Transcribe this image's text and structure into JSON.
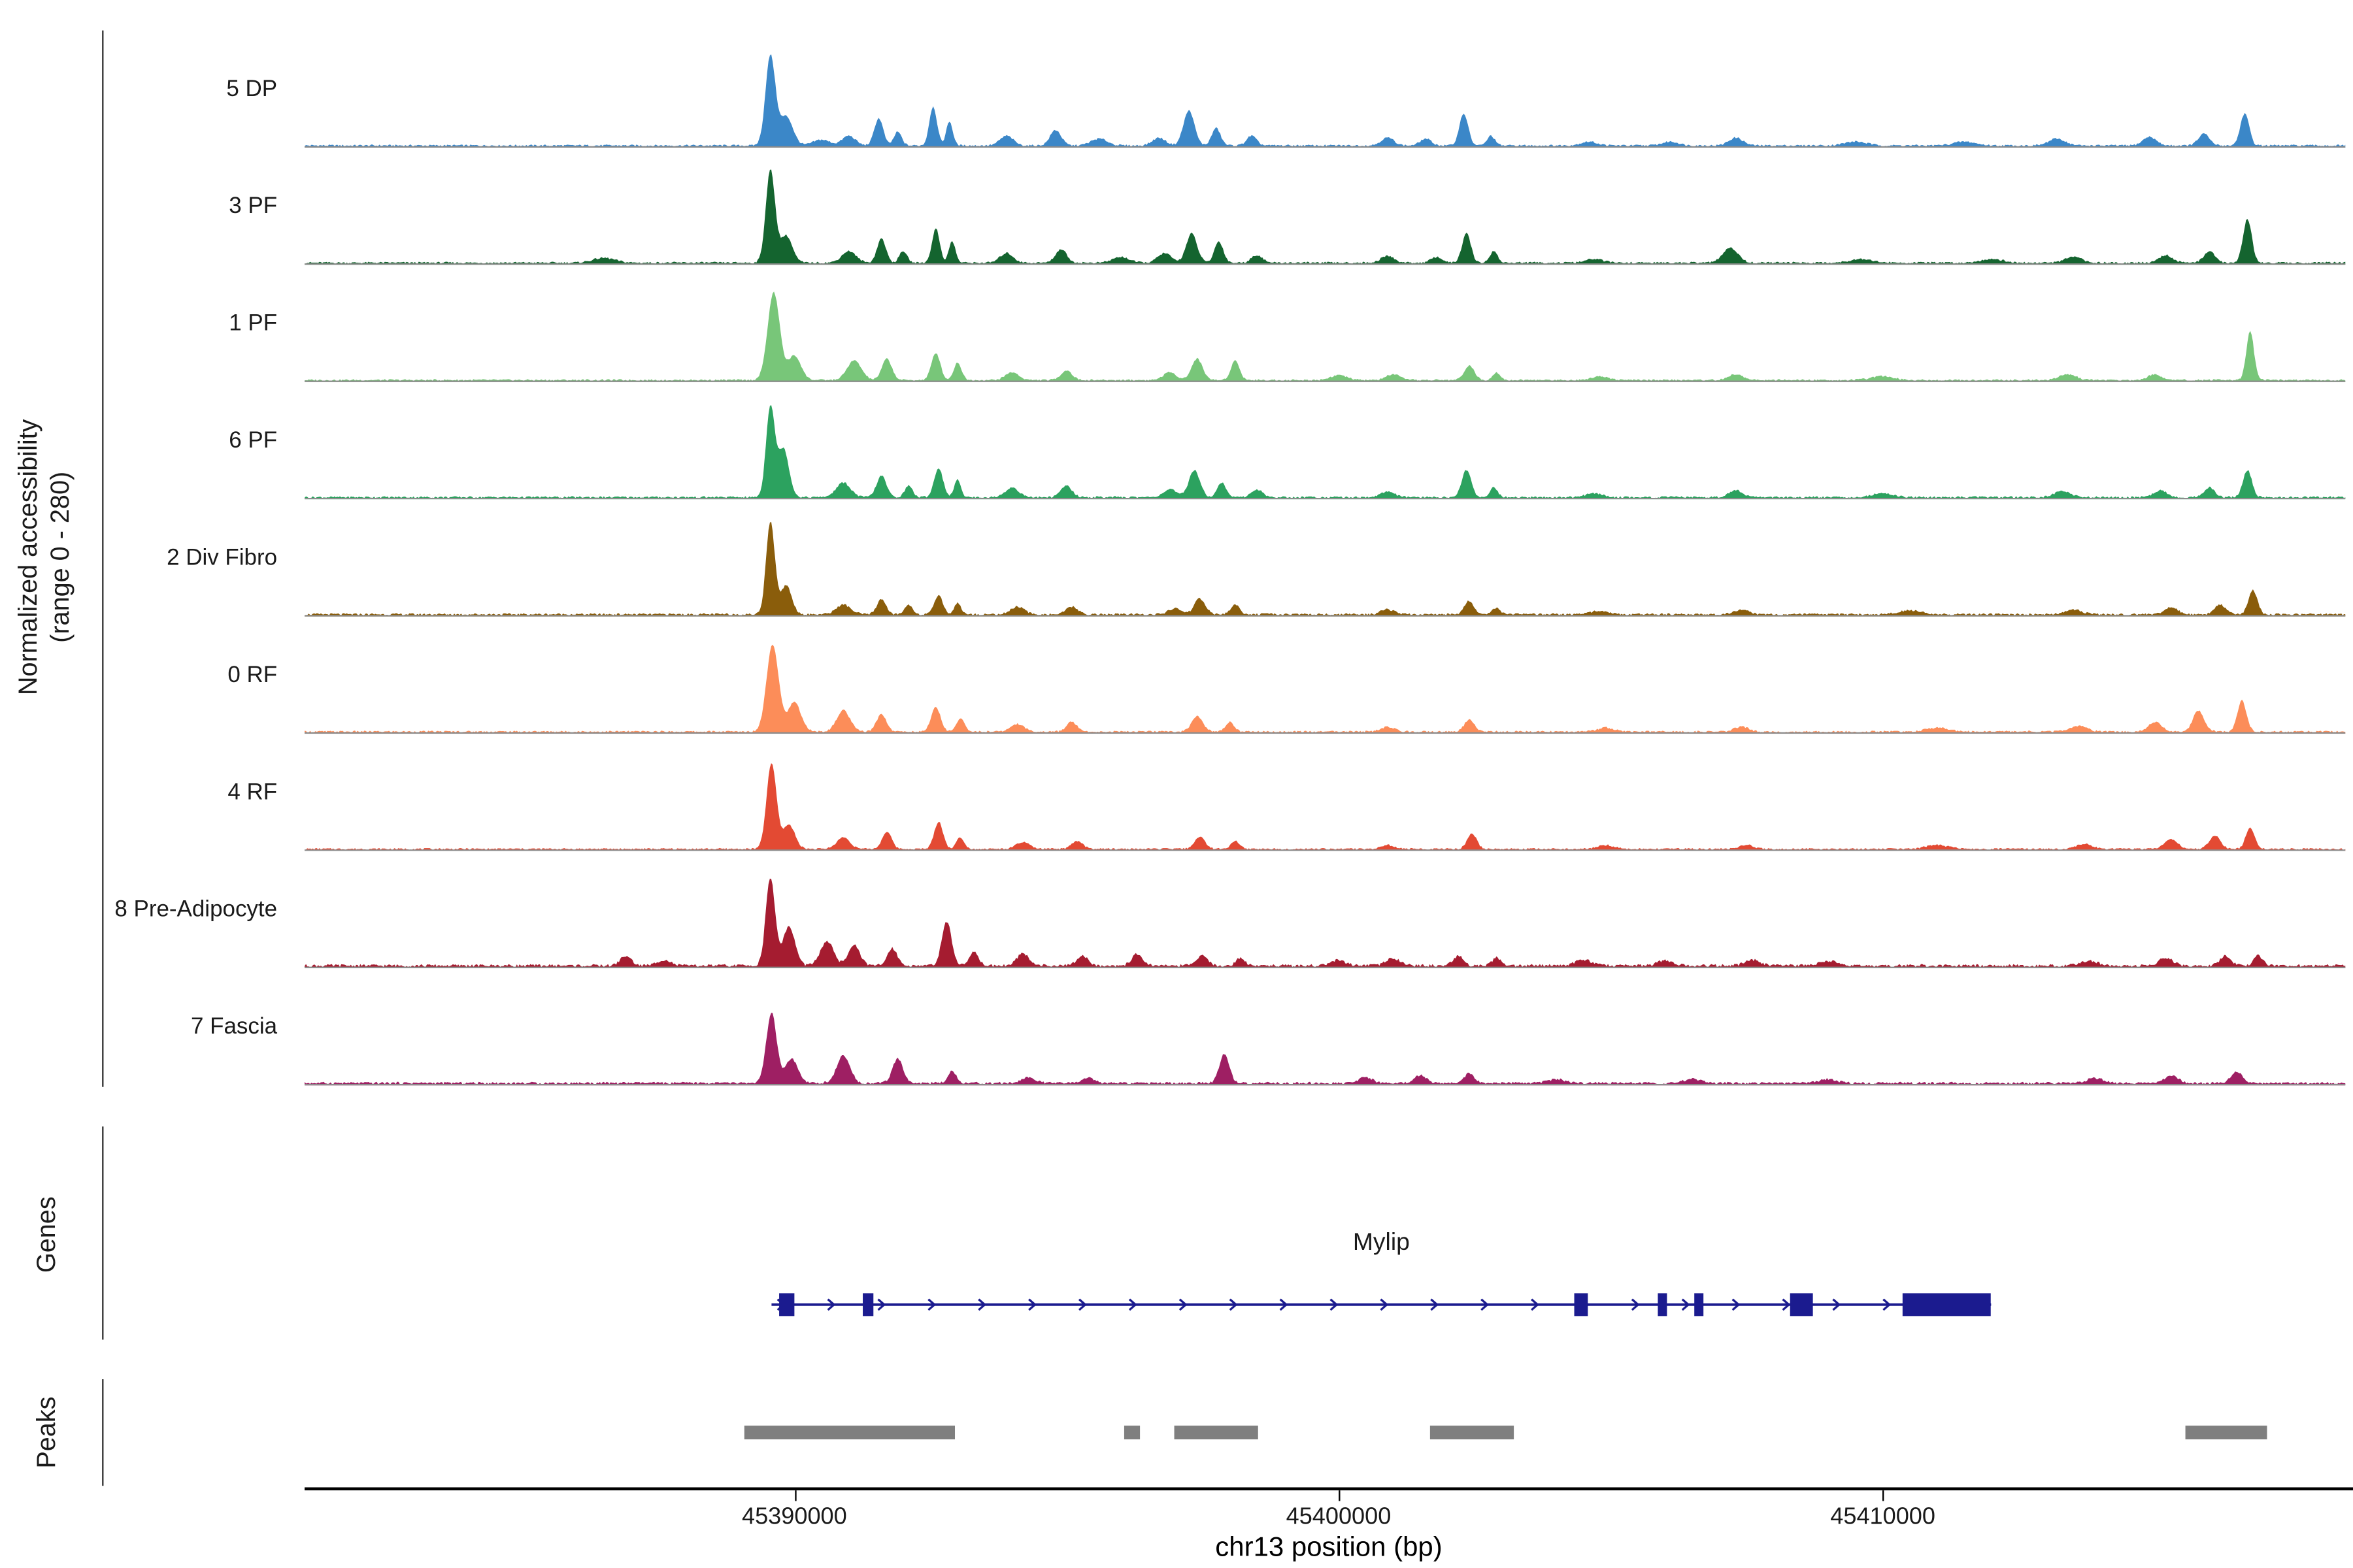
{
  "figure": {
    "y_axis_label_line1": "Normalized accessibility",
    "y_axis_label_line2": "(range 0 - 280)",
    "genes_section_label": "Genes",
    "peaks_section_label": "Peaks",
    "x_axis_title": "chr13 position (bp)",
    "gene_label": "Mylip"
  },
  "chart_data": {
    "type": "area",
    "title": "",
    "xlabel": "chr13 position (bp)",
    "ylabel": "Normalized accessibility (range 0 - 280)",
    "y_range": [
      0,
      280
    ],
    "x_domain_bp": [
      45381000,
      45418500
    ],
    "x_ticks": [
      45390000,
      45400000,
      45410000
    ],
    "x_tick_labels": [
      "45390000",
      "45400000",
      "45410000"
    ],
    "baseline_color": "#8c8c8c",
    "axis_color": "#000000",
    "gene_color": "#1b1b8f",
    "peak_bar_color": "#7f7f7f",
    "tracks": [
      {
        "label": "5 DP",
        "color": "#3b87c8",
        "noise": 0.02,
        "peaks": [
          [
            45389560,
            0.92,
            90
          ],
          [
            45389850,
            0.3,
            120
          ],
          [
            45390500,
            0.06,
            150
          ],
          [
            45391000,
            0.1,
            120
          ],
          [
            45391550,
            0.28,
            80
          ],
          [
            45391900,
            0.14,
            70
          ],
          [
            45392550,
            0.4,
            70
          ],
          [
            45392850,
            0.25,
            60
          ],
          [
            45393900,
            0.1,
            120
          ],
          [
            45394800,
            0.16,
            100
          ],
          [
            45395600,
            0.07,
            150
          ],
          [
            45396700,
            0.08,
            120
          ],
          [
            45397250,
            0.36,
            100
          ],
          [
            45397750,
            0.18,
            80
          ],
          [
            45398400,
            0.1,
            90
          ],
          [
            45400900,
            0.08,
            120
          ],
          [
            45401600,
            0.07,
            100
          ],
          [
            45402300,
            0.33,
            80
          ],
          [
            45402800,
            0.1,
            70
          ],
          [
            45404600,
            0.04,
            150
          ],
          [
            45406100,
            0.04,
            150
          ],
          [
            45407300,
            0.08,
            130
          ],
          [
            45409500,
            0.04,
            200
          ],
          [
            45411500,
            0.04,
            200
          ],
          [
            45413200,
            0.07,
            150
          ],
          [
            45414900,
            0.09,
            120
          ],
          [
            45415900,
            0.12,
            100
          ],
          [
            45416650,
            0.33,
            80
          ]
        ]
      },
      {
        "label": "3 PF",
        "color": "#14642f",
        "noise": 0.02,
        "peaks": [
          [
            45386500,
            0.05,
            200
          ],
          [
            45389560,
            0.95,
            85
          ],
          [
            45389850,
            0.28,
            110
          ],
          [
            45391000,
            0.12,
            130
          ],
          [
            45391600,
            0.25,
            80
          ],
          [
            45392000,
            0.12,
            70
          ],
          [
            45392600,
            0.35,
            70
          ],
          [
            45392900,
            0.22,
            60
          ],
          [
            45393900,
            0.1,
            120
          ],
          [
            45394900,
            0.14,
            100
          ],
          [
            45396000,
            0.06,
            150
          ],
          [
            45396800,
            0.1,
            120
          ],
          [
            45397300,
            0.3,
            100
          ],
          [
            45397800,
            0.22,
            80
          ],
          [
            45398500,
            0.08,
            100
          ],
          [
            45400900,
            0.07,
            120
          ],
          [
            45401800,
            0.06,
            100
          ],
          [
            45402350,
            0.3,
            80
          ],
          [
            45402850,
            0.12,
            70
          ],
          [
            45404700,
            0.04,
            150
          ],
          [
            45407200,
            0.15,
            140
          ],
          [
            45409600,
            0.04,
            200
          ],
          [
            45412000,
            0.04,
            200
          ],
          [
            45413500,
            0.06,
            150
          ],
          [
            45415200,
            0.08,
            120
          ],
          [
            45416000,
            0.12,
            100
          ],
          [
            45416700,
            0.45,
            80
          ]
        ]
      },
      {
        "label": "1 PF",
        "color": "#78c679",
        "noise": 0.018,
        "peaks": [
          [
            45389620,
            0.9,
            110
          ],
          [
            45390000,
            0.25,
            120
          ],
          [
            45391100,
            0.2,
            130
          ],
          [
            45391700,
            0.22,
            90
          ],
          [
            45392600,
            0.28,
            80
          ],
          [
            45393000,
            0.18,
            70
          ],
          [
            45394000,
            0.08,
            120
          ],
          [
            45395000,
            0.1,
            100
          ],
          [
            45396900,
            0.08,
            120
          ],
          [
            45397400,
            0.22,
            100
          ],
          [
            45398100,
            0.2,
            80
          ],
          [
            45400000,
            0.05,
            150
          ],
          [
            45401000,
            0.06,
            120
          ],
          [
            45402400,
            0.15,
            90
          ],
          [
            45402900,
            0.08,
            70
          ],
          [
            45404800,
            0.04,
            150
          ],
          [
            45407300,
            0.06,
            130
          ],
          [
            45410000,
            0.04,
            200
          ],
          [
            45413400,
            0.06,
            150
          ],
          [
            45415000,
            0.06,
            120
          ],
          [
            45416750,
            0.5,
            70
          ]
        ]
      },
      {
        "label": "6 PF",
        "color": "#2ca25f",
        "noise": 0.02,
        "peaks": [
          [
            45389560,
            0.93,
            80
          ],
          [
            45389800,
            0.5,
            100
          ],
          [
            45390900,
            0.15,
            130
          ],
          [
            45391600,
            0.22,
            90
          ],
          [
            45392100,
            0.12,
            70
          ],
          [
            45392650,
            0.3,
            80
          ],
          [
            45393000,
            0.18,
            60
          ],
          [
            45394000,
            0.1,
            120
          ],
          [
            45395000,
            0.12,
            100
          ],
          [
            45396900,
            0.08,
            120
          ],
          [
            45397350,
            0.28,
            100
          ],
          [
            45397850,
            0.15,
            80
          ],
          [
            45398500,
            0.08,
            100
          ],
          [
            45400900,
            0.06,
            120
          ],
          [
            45402350,
            0.28,
            85
          ],
          [
            45402850,
            0.1,
            70
          ],
          [
            45404700,
            0.04,
            150
          ],
          [
            45407300,
            0.07,
            130
          ],
          [
            45410000,
            0.04,
            200
          ],
          [
            45413300,
            0.06,
            150
          ],
          [
            45415100,
            0.07,
            120
          ],
          [
            45416000,
            0.1,
            100
          ],
          [
            45416700,
            0.28,
            80
          ]
        ]
      },
      {
        "label": "2 Div Fibro",
        "color": "#8a5d0b",
        "noise": 0.022,
        "peaks": [
          [
            45389560,
            0.95,
            80
          ],
          [
            45389850,
            0.3,
            100
          ],
          [
            45390900,
            0.1,
            130
          ],
          [
            45391600,
            0.16,
            80
          ],
          [
            45392100,
            0.1,
            70
          ],
          [
            45392650,
            0.2,
            75
          ],
          [
            45393000,
            0.12,
            60
          ],
          [
            45394100,
            0.08,
            120
          ],
          [
            45395100,
            0.08,
            100
          ],
          [
            45397000,
            0.06,
            120
          ],
          [
            45397450,
            0.16,
            100
          ],
          [
            45398100,
            0.1,
            80
          ],
          [
            45400900,
            0.05,
            120
          ],
          [
            45402400,
            0.14,
            85
          ],
          [
            45402900,
            0.07,
            70
          ],
          [
            45404800,
            0.04,
            150
          ],
          [
            45407400,
            0.05,
            130
          ],
          [
            45410500,
            0.04,
            200
          ],
          [
            45413500,
            0.05,
            150
          ],
          [
            45415300,
            0.07,
            120
          ],
          [
            45416200,
            0.1,
            100
          ],
          [
            45416800,
            0.25,
            80
          ]
        ]
      },
      {
        "label": "0 RF",
        "color": "#fc8d59",
        "noise": 0.02,
        "peaks": [
          [
            45389600,
            0.9,
            110
          ],
          [
            45390000,
            0.3,
            120
          ],
          [
            45390900,
            0.22,
            120
          ],
          [
            45391600,
            0.18,
            90
          ],
          [
            45392600,
            0.25,
            85
          ],
          [
            45393050,
            0.14,
            70
          ],
          [
            45394100,
            0.08,
            120
          ],
          [
            45395100,
            0.1,
            100
          ],
          [
            45397400,
            0.16,
            100
          ],
          [
            45398000,
            0.1,
            80
          ],
          [
            45400900,
            0.05,
            120
          ],
          [
            45402400,
            0.12,
            90
          ],
          [
            45404900,
            0.04,
            150
          ],
          [
            45407400,
            0.05,
            130
          ],
          [
            45411000,
            0.04,
            200
          ],
          [
            45413600,
            0.06,
            150
          ],
          [
            45415000,
            0.1,
            120
          ],
          [
            45415800,
            0.22,
            100
          ],
          [
            45416600,
            0.32,
            80
          ]
        ]
      },
      {
        "label": "4 RF",
        "color": "#e34a33",
        "noise": 0.018,
        "peaks": [
          [
            45389580,
            0.88,
            90
          ],
          [
            45389900,
            0.25,
            110
          ],
          [
            45390900,
            0.12,
            120
          ],
          [
            45391700,
            0.18,
            85
          ],
          [
            45392650,
            0.28,
            80
          ],
          [
            45393050,
            0.12,
            70
          ],
          [
            45394200,
            0.07,
            120
          ],
          [
            45395200,
            0.08,
            100
          ],
          [
            45397450,
            0.12,
            100
          ],
          [
            45398100,
            0.08,
            80
          ],
          [
            45400900,
            0.04,
            120
          ],
          [
            45402450,
            0.16,
            85
          ],
          [
            45404900,
            0.04,
            150
          ],
          [
            45407500,
            0.04,
            130
          ],
          [
            45411000,
            0.04,
            200
          ],
          [
            45413700,
            0.05,
            150
          ],
          [
            45415300,
            0.1,
            120
          ],
          [
            45416100,
            0.14,
            100
          ],
          [
            45416750,
            0.22,
            80
          ]
        ]
      },
      {
        "label": "8 Pre-Adipocyte",
        "color": "#a51c30",
        "noise": 0.03,
        "peaks": [
          [
            45386900,
            0.1,
            100
          ],
          [
            45387600,
            0.06,
            120
          ],
          [
            45389560,
            0.9,
            85
          ],
          [
            45389900,
            0.4,
            110
          ],
          [
            45390600,
            0.25,
            120
          ],
          [
            45391100,
            0.22,
            100
          ],
          [
            45391800,
            0.18,
            90
          ],
          [
            45392800,
            0.45,
            90
          ],
          [
            45393300,
            0.15,
            80
          ],
          [
            45394200,
            0.12,
            120
          ],
          [
            45395300,
            0.1,
            100
          ],
          [
            45396300,
            0.12,
            100
          ],
          [
            45397500,
            0.1,
            100
          ],
          [
            45398200,
            0.08,
            80
          ],
          [
            45400000,
            0.06,
            120
          ],
          [
            45401000,
            0.08,
            120
          ],
          [
            45402200,
            0.1,
            90
          ],
          [
            45402900,
            0.08,
            80
          ],
          [
            45404500,
            0.06,
            150
          ],
          [
            45406000,
            0.05,
            150
          ],
          [
            45407600,
            0.06,
            130
          ],
          [
            45409000,
            0.05,
            150
          ],
          [
            45413800,
            0.05,
            150
          ],
          [
            45415200,
            0.08,
            120
          ],
          [
            45416300,
            0.1,
            100
          ],
          [
            45416900,
            0.1,
            80
          ]
        ]
      },
      {
        "label": "7 Fascia",
        "color": "#9e1f63",
        "noise": 0.025,
        "peaks": [
          [
            45389580,
            0.72,
            95
          ],
          [
            45389950,
            0.25,
            110
          ],
          [
            45390900,
            0.28,
            120
          ],
          [
            45391900,
            0.25,
            95
          ],
          [
            45392900,
            0.12,
            80
          ],
          [
            45394300,
            0.06,
            120
          ],
          [
            45395400,
            0.06,
            100
          ],
          [
            45397900,
            0.3,
            90
          ],
          [
            45400500,
            0.06,
            120
          ],
          [
            45401500,
            0.08,
            110
          ],
          [
            45402400,
            0.1,
            90
          ],
          [
            45404000,
            0.04,
            150
          ],
          [
            45406500,
            0.04,
            150
          ],
          [
            45409000,
            0.04,
            150
          ],
          [
            45413900,
            0.05,
            150
          ],
          [
            45415300,
            0.08,
            120
          ],
          [
            45416500,
            0.12,
            100
          ]
        ]
      }
    ],
    "gene": {
      "name": "Mylip",
      "strand": "+",
      "start": 45389580,
      "end": 45411990,
      "exons": [
        [
          45389720,
          45390000
        ],
        [
          45391257,
          45391452
        ],
        [
          45404330,
          45404580
        ],
        [
          45405866,
          45406034
        ],
        [
          45406536,
          45406704
        ],
        [
          45408296,
          45408715
        ],
        [
          45410363,
          45411983
        ]
      ]
    },
    "peak_bars": [
      [
        45389080,
        45392950
      ],
      [
        45396060,
        45396350
      ],
      [
        45396980,
        45398520
      ],
      [
        45401680,
        45403220
      ],
      [
        45415560,
        45417060
      ]
    ]
  }
}
